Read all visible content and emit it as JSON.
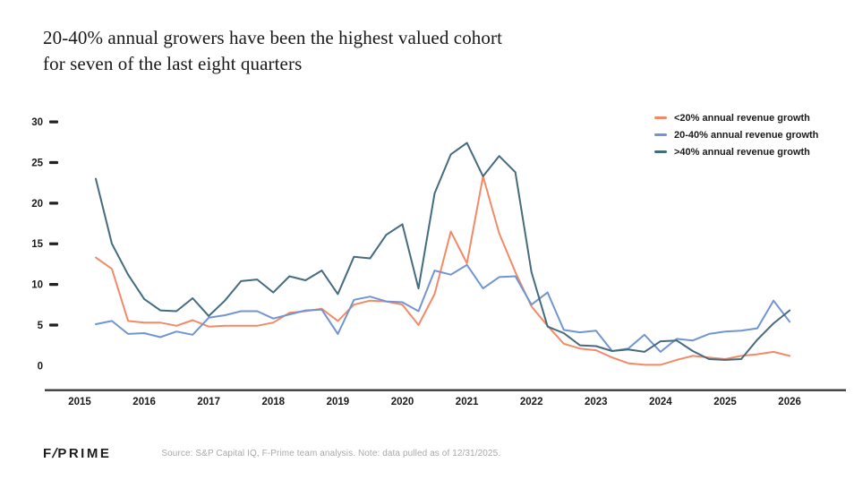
{
  "title": {
    "line1": "20-40% annual growers have been the highest valued cohort",
    "line2": "for seven of the last eight quarters"
  },
  "footer": {
    "logo_f": "F",
    "logo_slash": "/",
    "logo_rest": "PRIME",
    "source": "Source: S&P Capital IQ, F-Prime team analysis. Note: data pulled as of 12/31/2025."
  },
  "colors": {
    "axis": "#3d3d3d",
    "tick_text": "#1a1a1a",
    "lt20": "#F28A68",
    "g2040": "#7195D2",
    "gt40": "#456B7E"
  },
  "chart_data": {
    "type": "line",
    "title": "20-40% annual growers have been the highest valued cohort for seven of the last eight quarters",
    "xlabel": "",
    "ylabel": "",
    "x_start": 2015.25,
    "x_step": 0.25,
    "x_axis": {
      "tick_labels": [
        "2015",
        "2016",
        "2017",
        "2018",
        "2019",
        "2020",
        "2021",
        "2022",
        "2023",
        "2024",
        "2025",
        "2026"
      ],
      "range": [
        2015,
        2026.25
      ]
    },
    "y_axis": {
      "tick_labels": [
        "30",
        "25",
        "20",
        "15",
        "10",
        "5",
        "0"
      ],
      "tick_values": [
        30,
        25,
        20,
        15,
        10,
        5,
        0
      ],
      "range": [
        0,
        30
      ],
      "grid": false
    },
    "legend": {
      "position": "top-right"
    },
    "series": [
      {
        "name": "<20% annual revenue growth",
        "color": "#F28A68",
        "values": [
          13.3,
          11.9,
          5.5,
          5.3,
          5.3,
          4.9,
          5.6,
          4.8,
          4.9,
          4.9,
          4.9,
          5.3,
          6.5,
          6.7,
          7.0,
          5.5,
          7.5,
          8.0,
          7.9,
          7.5,
          5.0,
          8.8,
          16.5,
          12.6,
          23.3,
          16.3,
          11.5,
          7.3,
          4.9,
          2.7,
          2.1,
          1.9,
          1.0,
          0.3,
          0.1,
          0.1,
          0.7,
          1.2,
          1.0,
          0.8,
          1.2,
          1.4,
          1.7,
          1.2
        ]
      },
      {
        "name": "20-40% annual revenue growth",
        "color": "#7195D2",
        "values": [
          5.1,
          5.5,
          3.9,
          4.0,
          3.5,
          4.2,
          3.8,
          5.9,
          6.2,
          6.7,
          6.7,
          5.8,
          6.3,
          6.8,
          6.9,
          3.9,
          8.1,
          8.5,
          7.9,
          7.8,
          6.7,
          11.7,
          11.2,
          12.4,
          9.5,
          10.9,
          11.0,
          7.5,
          9.0,
          4.4,
          4.1,
          4.3,
          1.8,
          2.1,
          3.8,
          1.7,
          3.3,
          3.1,
          3.9,
          4.2,
          4.3,
          4.6,
          8.0,
          5.4
        ]
      },
      {
        "name": ">40% annual revenue growth",
        "color": "#456B7E",
        "values": [
          23.0,
          15.0,
          11.2,
          8.2,
          6.8,
          6.7,
          8.3,
          6.1,
          8.0,
          10.4,
          10.6,
          9.0,
          11.0,
          10.5,
          11.7,
          8.8,
          13.4,
          13.2,
          16.1,
          17.4,
          9.5,
          21.2,
          26.0,
          27.4,
          23.3,
          25.8,
          23.8,
          11.5,
          4.8,
          4.0,
          2.5,
          2.4,
          1.8,
          2.0,
          1.7,
          3.0,
          3.1,
          1.8,
          0.8,
          0.7,
          0.8,
          3.2,
          5.2,
          6.8
        ]
      }
    ]
  }
}
